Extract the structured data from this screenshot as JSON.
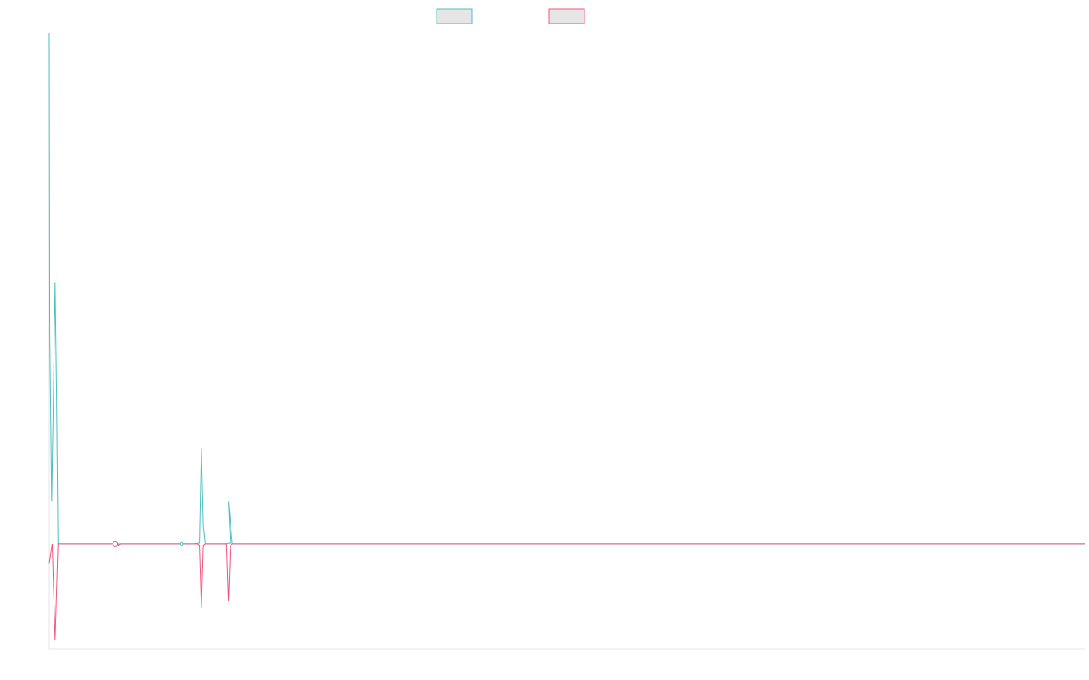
{
  "colors": {
    "series_1": "#4bbfc0",
    "series_2": "#f0557f",
    "legend_fill": "#e6e6e6",
    "axis": "#e6e6e6",
    "background": "#ffffff"
  },
  "legend": {
    "placement": "top-center",
    "items": [
      {
        "label": "",
        "color_key": "series_1"
      },
      {
        "label": "",
        "color_key": "series_2"
      }
    ]
  },
  "chart_data": {
    "type": "line",
    "title": "",
    "xlabel": "",
    "ylabel": "",
    "grid": false,
    "x_axis_ticks_visible": false,
    "y_axis_ticks_visible": false,
    "xlim": [
      0,
      1000
    ],
    "ylim": [
      -0.35,
      1.7
    ],
    "series": [
      {
        "color_key": "series_1",
        "points": [
          [
            0,
            1.7
          ],
          [
            0.5,
            0.7
          ],
          [
            2.5,
            0.14
          ],
          [
            6,
            0.87
          ],
          [
            7.5,
            0.5
          ],
          [
            9,
            0.0
          ],
          [
            12,
            0.0
          ],
          [
            40,
            0.0
          ],
          [
            55,
            0.0
          ],
          [
            60,
            0.0
          ],
          [
            64,
            0.0
          ],
          [
            66,
            0.0
          ],
          [
            128,
            0.0
          ],
          [
            140,
            0.0
          ],
          [
            145,
            0.003
          ],
          [
            147,
            0.32
          ],
          [
            149,
            0.06
          ],
          [
            151,
            0.0
          ],
          [
            170,
            0.0
          ],
          [
            175,
            0.003
          ],
          [
            173,
            0.14
          ],
          [
            177,
            0.0
          ],
          [
            180,
            0.0
          ],
          [
            1000,
            0.0
          ]
        ]
      },
      {
        "color_key": "series_2",
        "points": [
          [
            0,
            -0.065
          ],
          [
            3,
            0.0
          ],
          [
            6,
            -0.32
          ],
          [
            9,
            0.0
          ],
          [
            12,
            0.0
          ],
          [
            40,
            0.0
          ],
          [
            62,
            0.0
          ],
          [
            64,
            0.005
          ],
          [
            66,
            0.0
          ],
          [
            67,
            -0.005
          ],
          [
            69,
            0.0
          ],
          [
            128,
            0.0
          ],
          [
            143,
            0.0
          ],
          [
            145,
            -0.005
          ],
          [
            147,
            -0.215
          ],
          [
            149,
            -0.005
          ],
          [
            151,
            0.0
          ],
          [
            171,
            0.0
          ],
          [
            173,
            -0.19
          ],
          [
            175,
            -0.005
          ],
          [
            177,
            0.0
          ],
          [
            180,
            0.0
          ],
          [
            1000,
            0.0
          ]
        ]
      }
    ]
  }
}
